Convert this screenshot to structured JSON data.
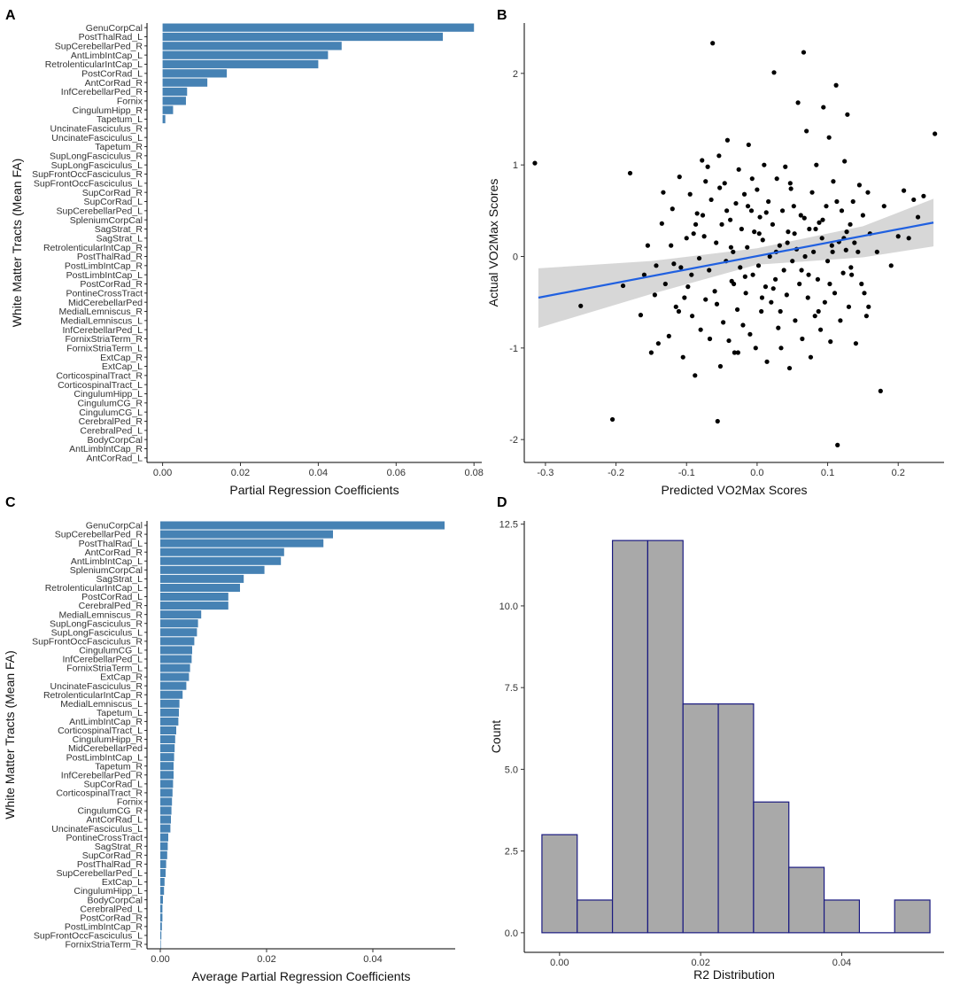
{
  "chart_data": [
    {
      "panel": "A",
      "type": "bar",
      "orientation": "horizontal",
      "xlabel": "Partial Regression Coefficients",
      "ylabel": "White Matter Tracts (Mean FA)",
      "xlim": [
        -0.004,
        0.082
      ],
      "xticks": [
        0.0,
        0.02,
        0.04,
        0.06,
        0.08
      ],
      "xtick_labels": [
        "0.00",
        "0.02",
        "0.04",
        "0.06",
        "0.08"
      ],
      "bar_color": "#4682b4",
      "categories": [
        "GenuCorpCal",
        "PostThalRad_L",
        "SupCerebellarPed_R",
        "AntLimbIntCap_L",
        "RetrolenticularIntCap_L",
        "PostCorRad_L",
        "AntCorRad_R",
        "InfCerebellarPed_R",
        "Fornix",
        "CingulumHipp_R",
        "Tapetum_L",
        "UncinateFasciculus_R",
        "UncinateFasciculus_L",
        "Tapetum_R",
        "SupLongFasciculus_R",
        "SupLongFasciculus_L",
        "SupFrontOccFasciculus_R",
        "SupFrontOccFasciculus_L",
        "SupCorRad_R",
        "SupCorRad_L",
        "SupCerebellarPed_L",
        "SpleniumCorpCal",
        "SagStrat_R",
        "SagStrat_L",
        "RetrolenticularIntCap_R",
        "PostThalRad_R",
        "PostLimbIntCap_R",
        "PostLimbIntCap_L",
        "PostCorRad_R",
        "PontineCrossTract",
        "MidCerebellarPed",
        "MedialLemniscus_R",
        "MedialLemniscus_L",
        "InfCerebellarPed_L",
        "FornixStriaTerm_R",
        "FornixStriaTerm_L",
        "ExtCap_R",
        "ExtCap_L",
        "CorticospinalTract_R",
        "CorticospinalTract_L",
        "CingulumHipp_L",
        "CingulumCG_R",
        "CingulumCG_L",
        "CerebralPed_R",
        "CerebralPed_L",
        "BodyCorpCal",
        "AntLimbIntCap_R",
        "AntCorRad_L"
      ],
      "values": [
        0.08,
        0.072,
        0.046,
        0.0425,
        0.04,
        0.0165,
        0.0115,
        0.0063,
        0.006,
        0.0027,
        0.0007,
        0,
        0,
        0,
        0,
        0,
        0,
        0,
        0,
        0,
        0,
        0,
        0,
        0,
        0,
        0,
        0,
        0,
        0,
        0,
        0,
        0,
        0,
        0,
        0,
        0,
        0,
        0,
        0,
        0,
        0,
        0,
        0,
        0,
        0,
        0,
        0,
        0
      ]
    },
    {
      "panel": "B",
      "type": "scatter",
      "xlabel": "Predicted VO2Max Scores",
      "ylabel": "Actual VO2Max Scores",
      "xlim": [
        -0.33,
        0.265
      ],
      "ylim": [
        -2.25,
        2.55
      ],
      "xticks": [
        -0.3,
        -0.2,
        -0.1,
        0.0,
        0.1,
        0.2
      ],
      "xtick_labels": [
        "-0.3",
        "-0.2",
        "-0.1",
        "0.0",
        "0.1",
        "0.2"
      ],
      "yticks": [
        -2,
        -1,
        0,
        1,
        2
      ],
      "ytick_labels": [
        "-2",
        "-1",
        "0",
        "1",
        "2"
      ],
      "point_color": "#000000",
      "fit_line": {
        "x": [
          -0.31,
          0.25
        ],
        "y": [
          -0.45,
          0.37
        ],
        "color": "#2060e0"
      },
      "confidence_band": {
        "x": [
          -0.31,
          -0.15,
          0.0,
          0.15,
          0.25
        ],
        "upper": [
          -0.13,
          -0.05,
          0.09,
          0.33,
          0.63
        ],
        "lower": [
          -0.78,
          -0.41,
          -0.09,
          -0.01,
          0.11
        ],
        "color": "#d3d3d3"
      },
      "points": [
        [
          -0.315,
          1.02
        ],
        [
          -0.25,
          -0.54
        ],
        [
          -0.205,
          -1.78
        ],
        [
          -0.19,
          -0.32
        ],
        [
          -0.18,
          0.91
        ],
        [
          -0.165,
          -0.64
        ],
        [
          -0.16,
          -0.2
        ],
        [
          -0.155,
          0.12
        ],
        [
          -0.15,
          -1.05
        ],
        [
          -0.145,
          -0.42
        ],
        [
          -0.14,
          -0.95
        ],
        [
          -0.135,
          0.36
        ],
        [
          -0.13,
          -0.3
        ],
        [
          -0.125,
          -0.87
        ],
        [
          -0.12,
          0.52
        ],
        [
          -0.118,
          -0.08
        ],
        [
          -0.115,
          -0.55
        ],
        [
          -0.11,
          0.87
        ],
        [
          -0.108,
          -0.12
        ],
        [
          -0.105,
          -1.1
        ],
        [
          -0.1,
          0.2
        ],
        [
          -0.098,
          -0.33
        ],
        [
          -0.095,
          0.68
        ],
        [
          -0.092,
          -0.65
        ],
        [
          -0.09,
          0.25
        ],
        [
          -0.088,
          -1.3
        ],
        [
          -0.085,
          0.47
        ],
        [
          -0.082,
          -0.02
        ],
        [
          -0.08,
          -0.8
        ],
        [
          -0.078,
          1.05
        ],
        [
          -0.075,
          0.22
        ],
        [
          -0.073,
          -0.47
        ],
        [
          -0.07,
          0.98
        ],
        [
          -0.068,
          -0.15
        ],
        [
          -0.065,
          0.62
        ],
        [
          -0.063,
          2.33
        ],
        [
          -0.06,
          -0.38
        ],
        [
          -0.058,
          0.15
        ],
        [
          -0.056,
          -1.8
        ],
        [
          -0.054,
          1.1
        ],
        [
          -0.052,
          -1.2
        ],
        [
          -0.05,
          0.35
        ],
        [
          -0.048,
          -0.72
        ],
        [
          -0.046,
          0.8
        ],
        [
          -0.044,
          -0.05
        ],
        [
          -0.042,
          1.27
        ],
        [
          -0.04,
          -0.92
        ],
        [
          -0.038,
          0.4
        ],
        [
          -0.036,
          -0.27
        ],
        [
          -0.034,
          0.05
        ],
        [
          -0.032,
          -1.05
        ],
        [
          -0.03,
          0.58
        ],
        [
          -0.028,
          -0.58
        ],
        [
          -0.026,
          0.95
        ],
        [
          -0.024,
          -0.12
        ],
        [
          -0.022,
          0.3
        ],
        [
          -0.02,
          -0.75
        ],
        [
          -0.018,
          0.68
        ],
        [
          -0.016,
          -0.4
        ],
        [
          -0.014,
          0.1
        ],
        [
          -0.012,
          1.22
        ],
        [
          -0.01,
          -0.85
        ],
        [
          -0.008,
          0.5
        ],
        [
          -0.006,
          -0.2
        ],
        [
          -0.004,
          0.27
        ],
        [
          -0.002,
          -1.0
        ],
        [
          0.0,
          0.73
        ],
        [
          0.002,
          -0.1
        ],
        [
          0.004,
          0.43
        ],
        [
          0.006,
          -0.6
        ],
        [
          0.008,
          0.18
        ],
        [
          0.01,
          1.0
        ],
        [
          0.012,
          -0.33
        ],
        [
          0.014,
          -1.15
        ],
        [
          0.016,
          0.6
        ],
        [
          0.018,
          0.0
        ],
        [
          0.02,
          -0.5
        ],
        [
          0.022,
          0.35
        ],
        [
          0.024,
          2.01
        ],
        [
          0.026,
          -0.25
        ],
        [
          0.028,
          0.85
        ],
        [
          0.03,
          -0.78
        ],
        [
          0.032,
          0.12
        ],
        [
          0.034,
          -1.0
        ],
        [
          0.036,
          0.5
        ],
        [
          0.038,
          -0.15
        ],
        [
          0.04,
          0.98
        ],
        [
          0.042,
          -0.42
        ],
        [
          0.044,
          0.27
        ],
        [
          0.046,
          -1.22
        ],
        [
          0.048,
          0.74
        ],
        [
          0.05,
          -0.05
        ],
        [
          0.052,
          0.55
        ],
        [
          0.054,
          -0.7
        ],
        [
          0.056,
          0.08
        ],
        [
          0.058,
          1.68
        ],
        [
          0.06,
          -0.3
        ],
        [
          0.062,
          0.45
        ],
        [
          0.064,
          -0.9
        ],
        [
          0.066,
          2.23
        ],
        [
          0.068,
          0.0
        ],
        [
          0.07,
          1.37
        ],
        [
          0.072,
          -0.45
        ],
        [
          0.074,
          0.3
        ],
        [
          0.076,
          -1.1
        ],
        [
          0.078,
          0.7
        ],
        [
          0.08,
          0.05
        ],
        [
          0.082,
          -0.65
        ],
        [
          0.084,
          1.0
        ],
        [
          0.086,
          -0.25
        ],
        [
          0.088,
          0.37
        ],
        [
          0.09,
          -0.8
        ],
        [
          0.092,
          0.2
        ],
        [
          0.094,
          1.63
        ],
        [
          0.096,
          -0.5
        ],
        [
          0.098,
          0.55
        ],
        [
          0.1,
          -0.05
        ],
        [
          0.102,
          1.3
        ],
        [
          0.104,
          -0.93
        ],
        [
          0.106,
          0.12
        ],
        [
          0.108,
          0.82
        ],
        [
          0.11,
          -0.4
        ],
        [
          0.112,
          1.87
        ],
        [
          0.114,
          -2.06
        ],
        [
          0.116,
          0.16
        ],
        [
          0.118,
          -0.7
        ],
        [
          0.12,
          0.5
        ],
        [
          0.122,
          -0.18
        ],
        [
          0.124,
          1.04
        ],
        [
          0.126,
          0.07
        ],
        [
          0.128,
          1.55
        ],
        [
          0.13,
          -0.55
        ],
        [
          0.132,
          0.35
        ],
        [
          0.134,
          -0.2
        ],
        [
          0.136,
          0.6
        ],
        [
          0.138,
          0.15
        ],
        [
          0.14,
          -0.95
        ],
        [
          0.145,
          0.78
        ],
        [
          0.148,
          -0.3
        ],
        [
          0.152,
          -0.4
        ],
        [
          0.155,
          -0.65
        ],
        [
          0.158,
          -0.55
        ],
        [
          0.17,
          0.05
        ],
        [
          0.175,
          -1.47
        ],
        [
          0.18,
          0.55
        ],
        [
          0.19,
          -0.1
        ],
        [
          0.2,
          0.22
        ],
        [
          0.208,
          0.72
        ],
        [
          0.215,
          0.2
        ],
        [
          0.222,
          0.62
        ],
        [
          0.228,
          0.43
        ],
        [
          0.236,
          0.66
        ],
        [
          0.252,
          1.34
        ],
        [
          -0.122,
          0.12
        ],
        [
          -0.111,
          -0.6
        ],
        [
          -0.087,
          0.35
        ],
        [
          -0.073,
          0.82
        ],
        [
          -0.057,
          -0.52
        ],
        [
          -0.037,
          0.1
        ],
        [
          -0.017,
          -0.22
        ],
        [
          0.003,
          0.25
        ],
        [
          0.023,
          -0.35
        ],
        [
          0.043,
          0.15
        ],
        [
          0.063,
          -0.15
        ],
        [
          0.083,
          0.3
        ],
        [
          0.103,
          -0.3
        ],
        [
          0.123,
          0.2
        ],
        [
          -0.143,
          -0.1
        ],
        [
          -0.133,
          0.7
        ],
        [
          -0.103,
          -0.45
        ],
        [
          -0.067,
          -0.9
        ],
        [
          -0.043,
          0.5
        ],
        [
          -0.027,
          -1.05
        ],
        [
          -0.007,
          0.85
        ],
        [
          0.013,
          0.48
        ],
        [
          0.033,
          -0.6
        ],
        [
          0.053,
          0.25
        ],
        [
          0.073,
          -0.2
        ],
        [
          0.093,
          0.4
        ],
        [
          0.113,
          0.6
        ],
        [
          0.133,
          -0.12
        ],
        [
          0.15,
          0.45
        ],
        [
          0.16,
          0.25
        ],
        [
          -0.093,
          -0.2
        ],
        [
          -0.077,
          0.45
        ],
        [
          -0.053,
          0.75
        ],
        [
          -0.033,
          -0.3
        ],
        [
          -0.013,
          0.55
        ],
        [
          0.007,
          -0.45
        ],
        [
          0.027,
          0.05
        ],
        [
          0.047,
          0.8
        ],
        [
          0.067,
          0.42
        ],
        [
          0.087,
          -0.6
        ],
        [
          0.107,
          0.05
        ],
        [
          0.127,
          0.27
        ],
        [
          0.143,
          0.05
        ],
        [
          0.157,
          0.7
        ]
      ]
    },
    {
      "panel": "C",
      "type": "bar",
      "orientation": "horizontal",
      "xlabel": "Average Partial Regression Coefficients",
      "ylabel": "White Matter Tracts (Mean FA)",
      "xlim": [
        -0.0025,
        0.0555
      ],
      "xticks": [
        0.0,
        0.02,
        0.04
      ],
      "xtick_labels": [
        "0.00",
        "0.02",
        "0.04"
      ],
      "bar_color": "#4682b4",
      "categories": [
        "GenuCorpCal",
        "SupCerebellarPed_R",
        "PostThalRad_L",
        "AntCorRad_R",
        "AntLimbIntCap_L",
        "SpleniumCorpCal",
        "SagStrat_L",
        "RetrolenticularIntCap_L",
        "PostCorRad_L",
        "CerebralPed_R",
        "MedialLemniscus_R",
        "SupLongFasciculus_R",
        "SupLongFasciculus_L",
        "SupFrontOccFasciculus_R",
        "CingulumCG_L",
        "InfCerebellarPed_L",
        "FornixStriaTerm_L",
        "ExtCap_R",
        "UncinateFasciculus_R",
        "RetrolenticularIntCap_R",
        "MedialLemniscus_L",
        "Tapetum_L",
        "AntLimbIntCap_R",
        "CorticospinalTract_L",
        "CingulumHipp_R",
        "MidCerebellarPed",
        "PostLimbIntCap_L",
        "Tapetum_R",
        "InfCerebellarPed_R",
        "SupCorRad_L",
        "CorticospinalTract_R",
        "Fornix",
        "CingulumCG_R",
        "AntCorRad_L",
        "UncinateFasciculus_L",
        "PontineCrossTract",
        "SagStrat_R",
        "SupCorRad_R",
        "PostThalRad_R",
        "SupCerebellarPed_L",
        "ExtCap_L",
        "CingulumHipp_L",
        "BodyCorpCal",
        "CerebralPed_L",
        "PostCorRad_R",
        "PostLimbIntCap_R",
        "SupFrontOccFasciculus_L",
        "FornixStriaTerm_R"
      ],
      "values": [
        0.0535,
        0.0325,
        0.0307,
        0.0233,
        0.0227,
        0.0196,
        0.0157,
        0.015,
        0.0128,
        0.0128,
        0.0077,
        0.0071,
        0.0069,
        0.0064,
        0.006,
        0.0059,
        0.0056,
        0.0054,
        0.0049,
        0.0042,
        0.0036,
        0.0035,
        0.0034,
        0.003,
        0.0028,
        0.0027,
        0.0026,
        0.0025,
        0.0025,
        0.0024,
        0.0023,
        0.0022,
        0.0021,
        0.002,
        0.0019,
        0.0015,
        0.0014,
        0.0013,
        0.0011,
        0.001,
        0.0008,
        0.0007,
        0.0005,
        0.0004,
        0.0004,
        0.0003,
        0.0002,
        0.0001
      ]
    },
    {
      "panel": "D",
      "type": "bar",
      "subtype": "histogram",
      "xlabel": "R2 Distribution",
      "ylabel": "Count",
      "xlim": [
        -0.005,
        0.0545
      ],
      "ylim": [
        -0.6,
        12.6
      ],
      "xticks": [
        0.0,
        0.02,
        0.04
      ],
      "xtick_labels": [
        "0.00",
        "0.02",
        "0.04"
      ],
      "yticks": [
        0.0,
        2.5,
        5.0,
        7.5,
        10.0,
        12.5
      ],
      "ytick_labels": [
        "0.0",
        "2.5",
        "5.0",
        "7.5",
        "10.0",
        "12.5"
      ],
      "bin_width": 0.005,
      "bin_centers": [
        0.0,
        0.005,
        0.01,
        0.015,
        0.02,
        0.025,
        0.03,
        0.035,
        0.04,
        0.045,
        0.05
      ],
      "values": [
        3,
        1,
        12,
        12,
        7,
        7,
        4,
        2,
        1,
        0,
        1
      ],
      "fill_color": "#a9a9a9",
      "edge_color": "#1a1a80"
    }
  ]
}
